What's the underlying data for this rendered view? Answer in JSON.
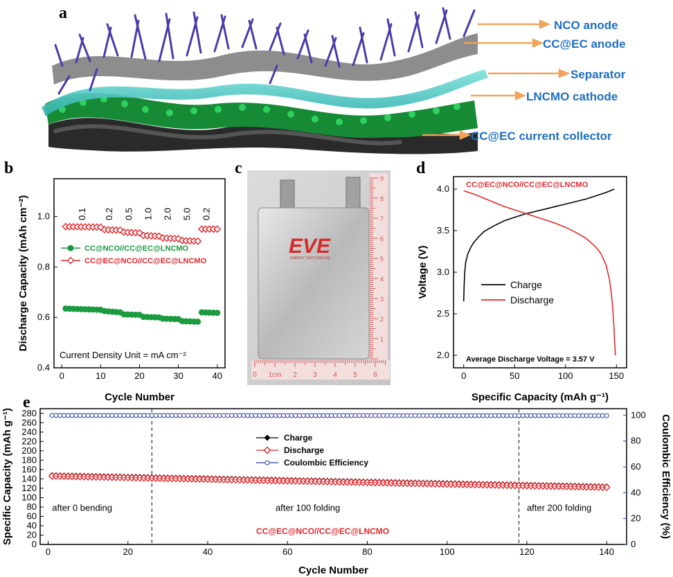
{
  "panel_a": {
    "letter": "a",
    "labels": [
      {
        "text": "NCO anode"
      },
      {
        "text": "CC@EC anode"
      },
      {
        "text": "Separator"
      },
      {
        "text": "LNCMO cathode"
      },
      {
        "text": "CC@EC current collector"
      }
    ],
    "colors": {
      "label": "#1f6fc0",
      "arrow": "#f0a35a",
      "nanowire": "#4b3aa8",
      "separator": "#3fc4c1",
      "cathode": "#1e8f3c",
      "fiber": "#8a8a8a"
    }
  },
  "panel_b": {
    "letter": "b"
  },
  "panel_c": {
    "letter": "c",
    "logo": "EVE",
    "logo_sub": "ENERGY VERY ENDURE",
    "ruler_x": [
      "0",
      "1cm",
      "2",
      "3",
      "4",
      "5",
      "6"
    ],
    "ruler_y": [
      "1",
      "2",
      "3",
      "4",
      "5",
      "6",
      "7",
      "8",
      "9"
    ]
  },
  "panel_d": {
    "letter": "d"
  },
  "panel_e": {
    "letter": "e"
  },
  "chart_data": [
    {
      "id": "b",
      "type": "scatter",
      "xlabel": "Cycle Number",
      "ylabel": "Discharge Capacity (mAh cm⁻²)",
      "xlim": [
        -2,
        42
      ],
      "ylim": [
        0.4,
        1.15
      ],
      "xticks": [
        0,
        10,
        20,
        30,
        40
      ],
      "yticks": [
        0.4,
        0.6,
        0.8,
        1.0
      ],
      "annotation": "Current Density Unit = mA cm⁻²",
      "rate_labels": [
        {
          "text": "0.1",
          "x": 6
        },
        {
          "text": "0.2",
          "x": 13
        },
        {
          "text": "0.5",
          "x": 18
        },
        {
          "text": "1.0",
          "x": 23
        },
        {
          "text": "2.0",
          "x": 28
        },
        {
          "text": "5.0",
          "x": 33
        },
        {
          "text": "0.2",
          "x": 38
        }
      ],
      "series": [
        {
          "name": "CC@NCO//CC@EC@LNCMO",
          "color": "#1b9a3e",
          "marker": "circle-filled",
          "segments": [
            {
              "x": [
                1,
                10
              ],
              "y": [
                0.635,
                0.63
              ]
            },
            {
              "x": [
                11,
                15
              ],
              "y": [
                0.625,
                0.62
              ]
            },
            {
              "x": [
                16,
                20
              ],
              "y": [
                0.612,
                0.61
              ]
            },
            {
              "x": [
                21,
                25
              ],
              "y": [
                0.602,
                0.6
              ]
            },
            {
              "x": [
                26,
                30
              ],
              "y": [
                0.595,
                0.593
              ]
            },
            {
              "x": [
                31,
                35
              ],
              "y": [
                0.585,
                0.583
              ]
            },
            {
              "x": [
                36,
                40
              ],
              "y": [
                0.62,
                0.618
              ]
            }
          ]
        },
        {
          "name": "CC@EC@NCO//CC@EC@LNCMO",
          "color": "#e0282d",
          "marker": "diamond-open",
          "segments": [
            {
              "x": [
                1,
                10
              ],
              "y": [
                0.96,
                0.958
              ]
            },
            {
              "x": [
                11,
                15
              ],
              "y": [
                0.948,
                0.946
              ]
            },
            {
              "x": [
                16,
                20
              ],
              "y": [
                0.938,
                0.935
              ]
            },
            {
              "x": [
                21,
                25
              ],
              "y": [
                0.925,
                0.922
              ]
            },
            {
              "x": [
                26,
                30
              ],
              "y": [
                0.915,
                0.912
              ]
            },
            {
              "x": [
                31,
                35
              ],
              "y": [
                0.905,
                0.902
              ]
            },
            {
              "x": [
                36,
                40
              ],
              "y": [
                0.95,
                0.95
              ]
            }
          ]
        }
      ]
    },
    {
      "id": "d",
      "type": "line",
      "xlabel": "Specific Capacity (mAh g⁻¹)",
      "ylabel": "Voltage (V)",
      "xlim": [
        -10,
        160
      ],
      "ylim": [
        1.85,
        4.15
      ],
      "xticks": [
        0,
        50,
        100,
        150
      ],
      "yticks": [
        2.0,
        2.5,
        3.0,
        3.5,
        4.0
      ],
      "title": "CC@EC@NCO//CC@EC@LNCMO",
      "annotation": "Average Discharge Voltage = 3.57 V",
      "series": [
        {
          "name": "Charge",
          "color": "#000000",
          "x": [
            0,
            0.5,
            1,
            2,
            4,
            7,
            10,
            15,
            20,
            30,
            40,
            50,
            60,
            70,
            80,
            90,
            100,
            110,
            120,
            130,
            140,
            148
          ],
          "y": [
            2.65,
            2.85,
            3.0,
            3.12,
            3.22,
            3.3,
            3.36,
            3.43,
            3.49,
            3.56,
            3.62,
            3.66,
            3.7,
            3.73,
            3.76,
            3.79,
            3.82,
            3.85,
            3.88,
            3.92,
            3.96,
            4.0
          ]
        },
        {
          "name": "Discharge",
          "color": "#e0282d",
          "x": [
            0,
            10,
            20,
            30,
            40,
            50,
            60,
            70,
            80,
            90,
            100,
            110,
            120,
            130,
            135,
            140,
            143,
            145,
            146.5,
            147.5,
            148.3,
            149
          ],
          "y": [
            3.98,
            3.94,
            3.89,
            3.84,
            3.79,
            3.75,
            3.71,
            3.67,
            3.63,
            3.59,
            3.54,
            3.48,
            3.41,
            3.3,
            3.22,
            3.08,
            2.92,
            2.75,
            2.55,
            2.35,
            2.15,
            2.0
          ]
        }
      ]
    },
    {
      "id": "e",
      "type": "scatter",
      "xlabel": "Cycle Number",
      "ylabel": "Specific Capacity (mAh g⁻¹)",
      "ylabel_right": "Coulombic Efficiency (%)",
      "xlim": [
        -2,
        145
      ],
      "ylim": [
        0,
        290
      ],
      "ylim_right": [
        0,
        105
      ],
      "xticks": [
        0,
        20,
        40,
        60,
        80,
        100,
        120,
        140
      ],
      "yticks": [
        0,
        20,
        40,
        60,
        80,
        100,
        120,
        140,
        160,
        180,
        200,
        220,
        240,
        260,
        280
      ],
      "yticks_right": [
        0,
        20,
        40,
        60,
        80,
        100
      ],
      "title": "CC@EC@NCO//CC@EC@LNCMO",
      "dividers": [
        26,
        118
      ],
      "annotations": [
        {
          "text": "after 0 bending",
          "x": 1,
          "y": 113
        },
        {
          "text": "after 100 folding",
          "x": 57,
          "y": 113
        },
        {
          "text": "after 200 folding",
          "x": 120,
          "y": 113
        }
      ],
      "series": [
        {
          "name": "Charge",
          "color": "#000000",
          "marker": "diamond-filled",
          "axis": "left",
          "x_range": [
            1,
            140
          ],
          "y_start": 148,
          "y_end": 124
        },
        {
          "name": "Discharge",
          "color": "#e0282d",
          "marker": "diamond-open",
          "axis": "left",
          "x_range": [
            1,
            140
          ],
          "y_start": 146,
          "y_end": 122
        },
        {
          "name": "Coulombic Efficiency",
          "color": "#2b3a9e",
          "marker": "circle-open",
          "axis": "right",
          "x_range": [
            1,
            140
          ],
          "y_start": 99.8,
          "y_end": 99.6
        }
      ]
    }
  ]
}
